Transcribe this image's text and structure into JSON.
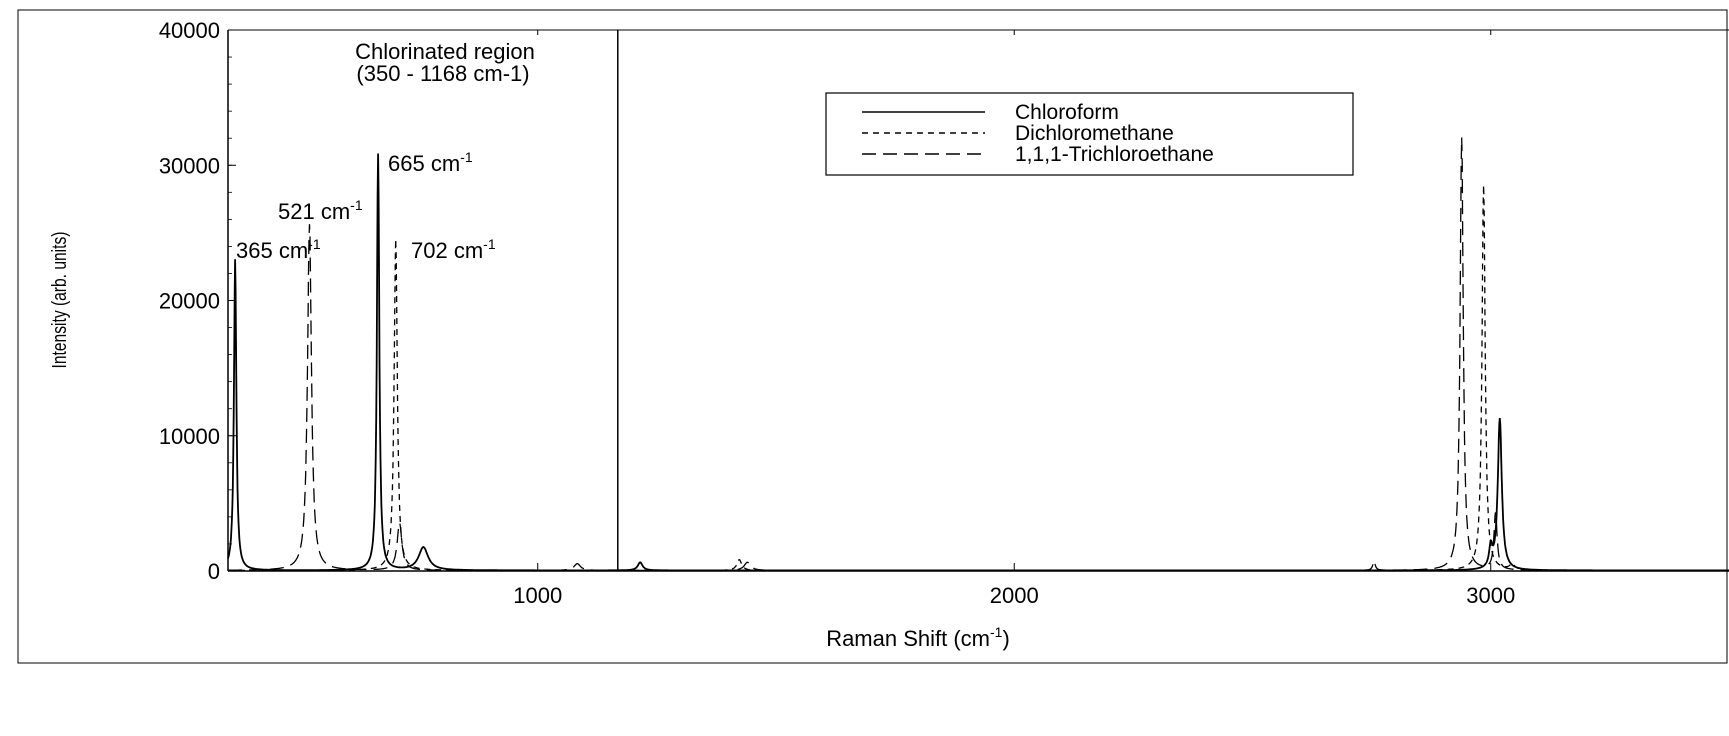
{
  "chart_data": {
    "type": "line",
    "title": "",
    "xlabel": "Raman Shift (cm",
    "xlabel_sup": "-1",
    "xlabel_suffix": ")",
    "ylabel": "Intensity (arb. units)",
    "xlim": [
      350,
      3500
    ],
    "ylim": [
      0,
      40000
    ],
    "x_ticks": [
      1000,
      2000,
      3000
    ],
    "y_ticks": [
      0,
      10000,
      20000,
      30000,
      40000
    ],
    "grid": false,
    "legend_position": "top-right",
    "legend": [
      {
        "label": "Chloroform",
        "dash": "solid"
      },
      {
        "label": "Dichloromethane",
        "dash": "short-dash"
      },
      {
        "label": "1,1,1-Trichloroethane",
        "dash": "long-dash"
      }
    ],
    "region": {
      "x": 1168,
      "label_line1": "Chlorinated region",
      "label_line2": "(350 - 1168 cm-1)"
    },
    "annotations": [
      {
        "text": "665 cm",
        "sup": "-1",
        "x": 665,
        "y": 30800
      },
      {
        "text": "521 cm",
        "sup": "-1",
        "x": 521,
        "y": 25600
      },
      {
        "text": "365 cm",
        "sup": "-1",
        "x": 365,
        "y": 23000
      },
      {
        "text": "702 cm",
        "sup": "-1",
        "x": 702,
        "y": 24500
      }
    ],
    "series": [
      {
        "name": "Chloroform",
        "dash": "solid",
        "peaks": [
          [
            365,
            23000,
            3
          ],
          [
            665,
            30800,
            3
          ],
          [
            760,
            1700,
            12
          ],
          [
            1215,
            600,
            6
          ],
          [
            3019,
            11200,
            5
          ],
          [
            3000,
            1500,
            4
          ]
        ]
      },
      {
        "name": "Dichloromethane",
        "dash": "short-dash",
        "peaks": [
          [
            702,
            24500,
            4
          ],
          [
            1423,
            800,
            6
          ],
          [
            2985,
            28500,
            4
          ],
          [
            3045,
            400,
            6
          ]
        ]
      },
      {
        "name": "1,1,1-Trichloroethane",
        "dash": "long-dash",
        "peaks": [
          [
            521,
            25600,
            5
          ],
          [
            710,
            3500,
            6
          ],
          [
            1083,
            500,
            8
          ],
          [
            1440,
            600,
            8
          ],
          [
            2939,
            32000,
            4
          ],
          [
            2755,
            700,
            3
          ],
          [
            3010,
            4200,
            4
          ]
        ]
      }
    ]
  }
}
